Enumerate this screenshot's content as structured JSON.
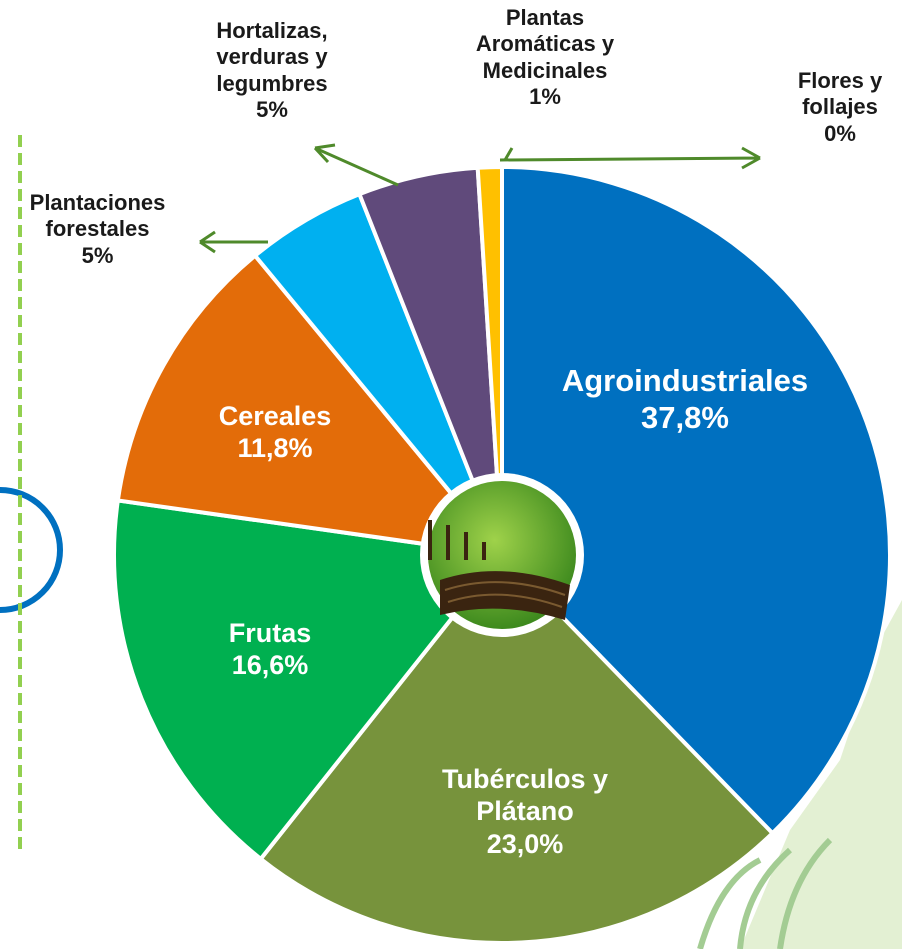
{
  "chart_data": {
    "type": "pie",
    "categories": [
      "Agroindustriales",
      "Tubérculos y Plátano",
      "Frutas",
      "Cereales",
      "Plantaciones forestales",
      "Hortalizas, verduras y legumbres",
      "Plantas Aromáticas y Medicinales",
      "Flores y follajes"
    ],
    "values": [
      37.8,
      23.0,
      16.6,
      11.8,
      5,
      5,
      1,
      0
    ],
    "value_labels": [
      "37,8%",
      "23,0%",
      "16,6%",
      "11,8%",
      "5%",
      "5%",
      "1%",
      "0%"
    ],
    "colors": [
      "#0070c0",
      "#77933c",
      "#00b050",
      "#e36c09",
      "#00b0f0",
      "#604a7b",
      "#ffc000",
      "#ffffff"
    ]
  }
}
